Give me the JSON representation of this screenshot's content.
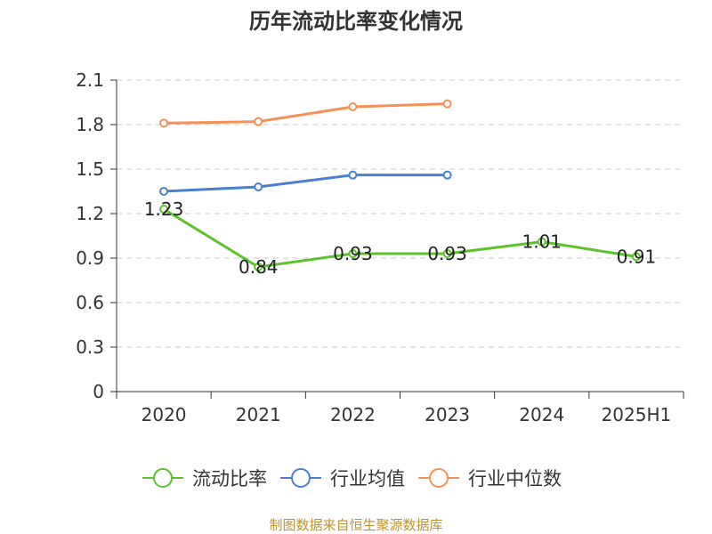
{
  "chart_data": {
    "type": "line",
    "title": "历年流动比率变化情况",
    "categories": [
      "2020",
      "2021",
      "2022",
      "2023",
      "2024",
      "2025H1"
    ],
    "yticks": [
      "0",
      "0.3",
      "0.6",
      "0.9",
      "1.2",
      "1.5",
      "1.8",
      "2.1"
    ],
    "ylim": [
      0,
      2.1
    ],
    "grid": true,
    "legend_position": "bottom",
    "series": [
      {
        "name": "流动比率",
        "color": "#5cc32c",
        "values": [
          1.23,
          0.84,
          0.93,
          0.93,
          1.01,
          0.91
        ],
        "labels": [
          "1.23",
          "0.84",
          "0.93",
          "0.93",
          "1.01",
          "0.91"
        ]
      },
      {
        "name": "行业均值",
        "color": "#4a7fd6",
        "values": [
          1.35,
          1.38,
          1.46,
          1.46,
          null,
          null
        ]
      },
      {
        "name": "行业中位数",
        "color": "#f39158",
        "values": [
          1.81,
          1.82,
          1.92,
          1.94,
          null,
          null
        ]
      }
    ]
  },
  "source": "制图数据来自恒生聚源数据库"
}
